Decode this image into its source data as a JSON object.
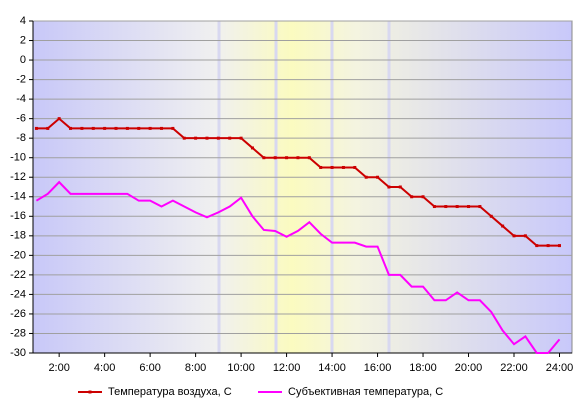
{
  "chart_data": {
    "type": "line",
    "x": [
      1,
      1.5,
      2,
      2.5,
      3,
      3.5,
      4,
      4.5,
      5,
      5.5,
      6,
      6.5,
      7,
      7.5,
      8,
      8.5,
      9,
      9.5,
      10,
      10.5,
      11,
      11.5,
      12,
      12.5,
      13,
      13.5,
      14,
      14.5,
      15,
      15.5,
      16,
      16.5,
      17,
      17.5,
      18,
      18.5,
      19,
      19.5,
      20,
      20.5,
      21,
      21.5,
      22,
      22.5,
      23,
      23.5,
      24
    ],
    "series": [
      {
        "name": "Температура воздуха, С",
        "color": "#cc0000",
        "markers": true,
        "values": [
          -7,
          -7,
          -6,
          -7,
          -7,
          -7,
          -7,
          -7,
          -7,
          -7,
          -7,
          -7,
          -7,
          -8,
          -8,
          -8,
          -8,
          -8,
          -8,
          -9,
          -10,
          -10,
          -10,
          -10,
          -10,
          -11,
          -11,
          -11,
          -11,
          -12,
          -12,
          -13,
          -13,
          -14,
          -14,
          -15,
          -15,
          -15,
          -15,
          -15,
          -16,
          -17,
          -18,
          -18,
          -19,
          -19,
          -19
        ]
      },
      {
        "name": "Субъективная температура, С",
        "color": "#ff00ff",
        "markers": false,
        "values": [
          -14.4,
          -13.7,
          -12.5,
          -13.7,
          -13.7,
          -13.7,
          -13.7,
          -13.7,
          -13.7,
          -14.4,
          -14.4,
          -15,
          -14.4,
          -15,
          -15.6,
          -16.1,
          -15.6,
          -15,
          -14.1,
          -16,
          -17.4,
          -17.5,
          -18.1,
          -17.5,
          -16.6,
          -17.8,
          -18.7,
          -18.7,
          -18.7,
          -19.1,
          -19.1,
          -22,
          -22,
          -23.2,
          -23.2,
          -24.6,
          -24.6,
          -23.8,
          -24.6,
          -24.6,
          -25.8,
          -27.7,
          -29.1,
          -28.3,
          -30,
          -30,
          -28.6
        ]
      }
    ],
    "xlim": [
      0.85,
      24.55
    ],
    "xticks": [
      {
        "value": 2,
        "label": "2:00"
      },
      {
        "value": 4,
        "label": "4:00"
      },
      {
        "value": 6,
        "label": "6:00"
      },
      {
        "value": 8,
        "label": "8:00"
      },
      {
        "value": 10,
        "label": "10:00"
      },
      {
        "value": 12,
        "label": "12:00"
      },
      {
        "value": 14,
        "label": "14:00"
      },
      {
        "value": 16,
        "label": "16:00"
      },
      {
        "value": 18,
        "label": "18:00"
      },
      {
        "value": 20,
        "label": "20:00"
      },
      {
        "value": 22,
        "label": "22:00"
      },
      {
        "value": 24,
        "label": "24:00"
      }
    ],
    "ylim": [
      -30,
      4
    ],
    "yticks": [
      4,
      2,
      0,
      -2,
      -4,
      -6,
      -8,
      -10,
      -12,
      -14,
      -16,
      -18,
      -20,
      -22,
      -24,
      -26,
      -28,
      -30
    ],
    "grid": true
  }
}
